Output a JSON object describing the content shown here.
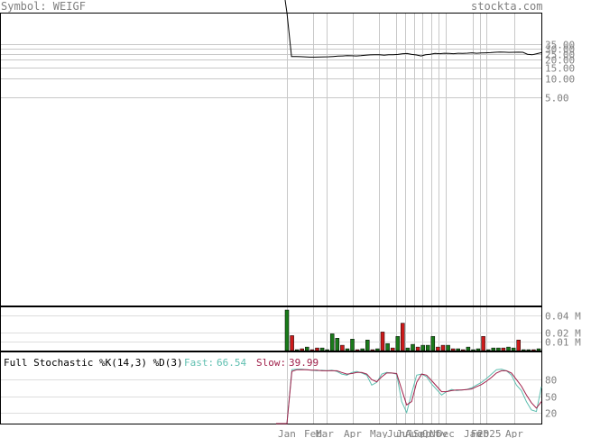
{
  "header": {
    "symbol_label": "Symbol: WEIGF",
    "site": "stockta.com"
  },
  "colors": {
    "price_line": "#000000",
    "up_volume": "#1a7a1a",
    "down_volume": "#cc1a1a",
    "fast_line": "#5fbfb0",
    "slow_line": "#a0204a",
    "grid": "#c8c8c8",
    "axis_text": "#808080"
  },
  "chart_data": [
    {
      "type": "line",
      "name": "price",
      "y_scale": "log",
      "y_ticks": [
        "35.00",
        "30.00",
        "25.00",
        "20.00",
        "15.00",
        "10.00",
        "5.00"
      ],
      "x_labels": [
        "Jan",
        "Feb",
        "Mar",
        "Apr",
        "May",
        "Jun",
        "Jul",
        "Aug",
        "Sep",
        "Oct",
        "Nov",
        "Dec",
        "Jan",
        "Feb",
        "2025",
        "Apr"
      ],
      "values": [
        100,
        22.5,
        22.5,
        22.4,
        22.2,
        22.0,
        22.0,
        22.1,
        22.2,
        22.3,
        22.5,
        22.8,
        23.0,
        23.2,
        23.1,
        23.0,
        23.2,
        23.6,
        23.9,
        24.0,
        24.0,
        23.7,
        24.1,
        24.0,
        24.3,
        25.0,
        25.1,
        24.3,
        23.8,
        23.0,
        24.0,
        24.5,
        25.3,
        25.0,
        25.4,
        25.3,
        25.0,
        25.4,
        25.3,
        25.5,
        25.8,
        25.4,
        25.6,
        25.8,
        26.0,
        26.3,
        26.6,
        26.4,
        26.2,
        26.3,
        26.4,
        26.3,
        24.5,
        24.0,
        25.0,
        26.0
      ]
    },
    {
      "type": "bar",
      "name": "volume",
      "y_ticks": [
        "0.04 M",
        "0.02 M",
        "0.01 M"
      ],
      "values": [
        0.046,
        0.017,
        0.001,
        0.002,
        0.004,
        0.001,
        0.003,
        0.003,
        0.0,
        0.019,
        0.014,
        0.006,
        0.002,
        0.013,
        0.001,
        0.002,
        0.012,
        0.0,
        0.002,
        0.021,
        0.008,
        0.003,
        0.016,
        0.031,
        0.003,
        0.007,
        0.004,
        0.006,
        0.006,
        0.016,
        0.004,
        0.006,
        0.006,
        0.002,
        0.002,
        0.001,
        0.004,
        0.001,
        0.002,
        0.016,
        0.001,
        0.003,
        0.003,
        0.003,
        0.004,
        0.003,
        0.012,
        0.001,
        0.001,
        0.001,
        0.002
      ],
      "up": [
        true,
        false,
        true,
        false,
        true,
        false,
        false,
        true,
        true,
        true,
        true,
        false,
        true,
        true,
        false,
        true,
        true,
        false,
        true,
        false,
        true,
        false,
        true,
        false,
        true,
        true,
        false,
        true,
        true,
        true,
        false,
        false,
        true,
        false,
        true,
        false,
        true,
        true,
        true,
        false,
        true,
        true,
        true,
        false,
        true,
        true,
        false,
        true,
        true,
        false,
        true
      ]
    },
    {
      "type": "line",
      "name": "stochastic",
      "title": "Full Stochastic %K(14,3) %D(3)",
      "fast_label": "Fast:",
      "fast_value": "66.54",
      "slow_label": "Slow:",
      "slow_value": "39.99",
      "y_ticks": [
        "80",
        "50",
        "20"
      ],
      "ylim": [
        0,
        100
      ],
      "fast": [
        0,
        98,
        99,
        99,
        98,
        97,
        96,
        97,
        96,
        97,
        95,
        90,
        88,
        93,
        95,
        92,
        88,
        70,
        75,
        90,
        93,
        92,
        90,
        40,
        20,
        55,
        88,
        90,
        85,
        72,
        62,
        52,
        58,
        62,
        60,
        61,
        62,
        65,
        70,
        75,
        82,
        90,
        98,
        99,
        96,
        88,
        70,
        60,
        40,
        25,
        22,
        67
      ],
      "slow": [
        0,
        95,
        98,
        98,
        98,
        97,
        97,
        96,
        96,
        96,
        96,
        93,
        90,
        91,
        93,
        93,
        90,
        80,
        76,
        85,
        92,
        92,
        91,
        62,
        34,
        40,
        75,
        90,
        88,
        78,
        68,
        58,
        58,
        60,
        61,
        61,
        62,
        63,
        67,
        71,
        77,
        84,
        92,
        96,
        96,
        92,
        80,
        68,
        52,
        38,
        28,
        40
      ]
    }
  ]
}
